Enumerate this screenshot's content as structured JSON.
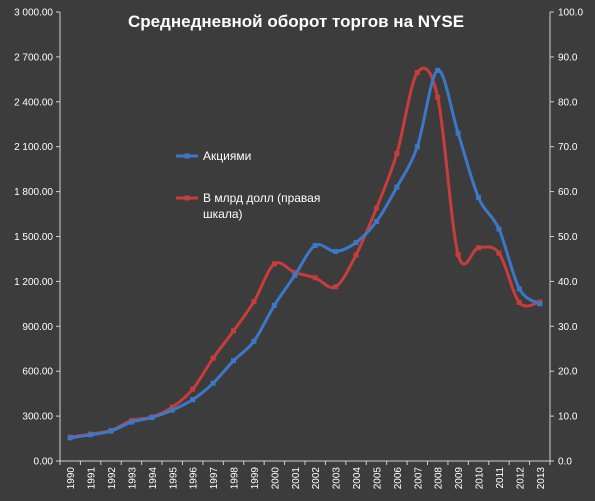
{
  "chart_data": {
    "type": "line",
    "title": "Среднедневной оборот торгов на NYSE",
    "categories": [
      "1990",
      "1991",
      "1992",
      "1993",
      "1994",
      "1995",
      "1996",
      "1997",
      "1998",
      "1999",
      "2000",
      "2001",
      "2002",
      "2003",
      "2004",
      "2005",
      "2006",
      "2007",
      "2008",
      "2009",
      "2010",
      "2011",
      "2012",
      "2013"
    ],
    "y_left": {
      "min": 0,
      "max": 3000,
      "step": 300,
      "tick_labels": [
        "0.00",
        "300.00",
        "600.00",
        "900.00",
        "1 200.00",
        "1 500.00",
        "1 800.00",
        "2 100.00",
        "2 400.00",
        "2 700.00",
        "3 000.00"
      ]
    },
    "y_right": {
      "min": 0,
      "max": 100,
      "step": 10,
      "tick_labels": [
        "0.0",
        "10.0",
        "20.0",
        "30.0",
        "40.0",
        "50.0",
        "60.0",
        "70.0",
        "80.0",
        "90.0",
        "100.0"
      ]
    },
    "series": [
      {
        "name": "Акциями",
        "axis": "left",
        "color": "#3b78c8",
        "values": [
          155,
          175,
          200,
          260,
          290,
          340,
          410,
          520,
          670,
          800,
          1040,
          1240,
          1440,
          1400,
          1460,
          1600,
          1830,
          2100,
          2610,
          2190,
          1760,
          1550,
          1150,
          1050
        ]
      },
      {
        "name": "В млрд долл (правая шкала)",
        "axis": "right",
        "color": "#c83c3c",
        "values": [
          5.3,
          6.0,
          6.8,
          9.0,
          9.8,
          12.0,
          16.0,
          22.9,
          29.0,
          35.5,
          43.9,
          42.0,
          40.8,
          38.8,
          45.9,
          56.3,
          68.5,
          86.5,
          81.0,
          46.0,
          47.5,
          46.3,
          35.3,
          35.4
        ]
      }
    ],
    "legend": {
      "position": "inside-center-left",
      "entries": [
        "Акциями",
        "В млрд долл (правая",
        "шкала)"
      ]
    },
    "grid": false
  }
}
